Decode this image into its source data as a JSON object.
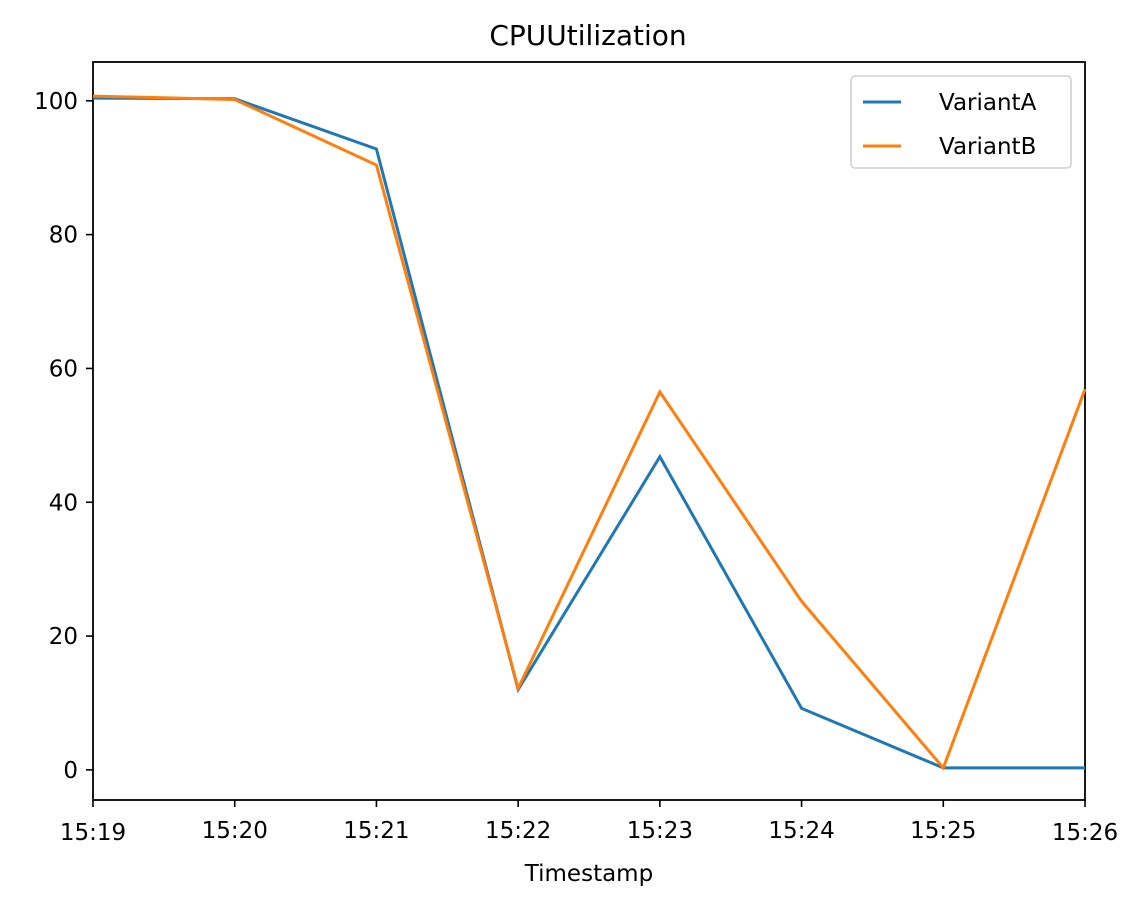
{
  "chart_data": {
    "type": "line",
    "title": "CPUUtilization",
    "xlabel": "Timestamp",
    "ylabel": "",
    "x": [
      "15:19",
      "15:20",
      "15:21",
      "15:22",
      "15:23",
      "15:24",
      "15:25",
      "15:26"
    ],
    "x_ticks": [
      "15:19",
      "15:20",
      "15:21",
      "15:22",
      "15:23",
      "15:24",
      "15:25",
      "15:26"
    ],
    "y_ticks": [
      0,
      20,
      40,
      60,
      80,
      100
    ],
    "ylim": [
      -4.5,
      105.8
    ],
    "grid": false,
    "legend_position": "top-right",
    "series": [
      {
        "name": "VariantA",
        "color": "#1f77b4",
        "values": [
          100.4,
          100.3,
          92.8,
          12.0,
          46.8,
          9.2,
          0.3,
          0.3
        ]
      },
      {
        "name": "VariantB",
        "color": "#ff7f0e",
        "values": [
          100.7,
          100.2,
          90.4,
          12.2,
          56.5,
          25.2,
          0.3,
          56.9
        ]
      }
    ]
  }
}
